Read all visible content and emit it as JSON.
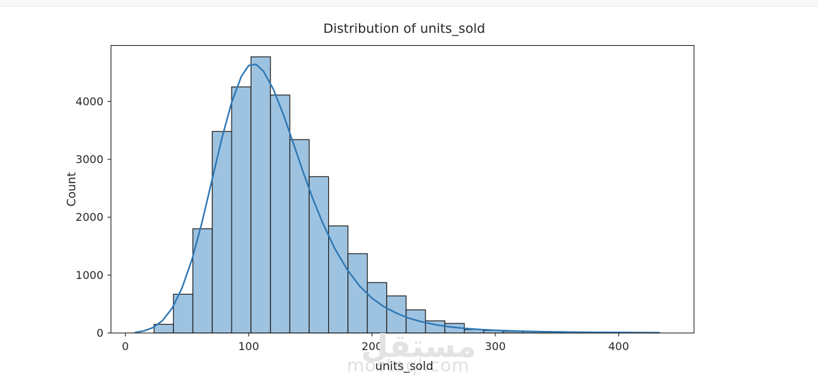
{
  "page": {
    "background": "#ffffff",
    "top_strip_color": "#f7f7f8"
  },
  "chart_data": {
    "type": "histogram-kde",
    "title": "Distribution of units_sold",
    "xlabel": "units_sold",
    "ylabel": "Count",
    "xticks": [
      0,
      100,
      200,
      300,
      400
    ],
    "yticks": [
      0,
      1000,
      2000,
      3000,
      4000
    ],
    "xlim": [
      -11.7,
      461
    ],
    "ylim": [
      0,
      4966
    ],
    "grid": false,
    "legend": "none",
    "bins": {
      "start": 23.3,
      "width": 15.72,
      "counts": [
        150,
        670,
        1800,
        3480,
        4250,
        4770,
        4110,
        3340,
        2700,
        1850,
        1370,
        870,
        640,
        400,
        210,
        165,
        60,
        42,
        30,
        24,
        18,
        14,
        11,
        9,
        7,
        5
      ]
    },
    "kde": {
      "x": [
        8,
        15,
        22,
        30,
        38,
        46,
        54,
        62,
        70,
        78,
        86,
        94,
        100,
        106,
        112,
        120,
        128,
        136,
        144,
        152,
        160,
        170,
        180,
        190,
        200,
        210,
        220,
        230,
        240,
        252,
        264,
        276,
        290,
        305,
        320,
        340,
        360,
        380,
        400,
        420,
        433
      ],
      "y": [
        10,
        35,
        90,
        210,
        430,
        780,
        1270,
        1900,
        2620,
        3340,
        3970,
        4430,
        4620,
        4640,
        4520,
        4210,
        3780,
        3290,
        2790,
        2320,
        1900,
        1450,
        1090,
        810,
        600,
        450,
        340,
        255,
        195,
        140,
        103,
        78,
        57,
        42,
        32,
        22,
        16,
        12,
        9,
        7,
        6
      ]
    },
    "colors": {
      "bar_fill": "#9ec3e1",
      "bar_edge": "#1a1a1a",
      "kde_line": "#2e77b5",
      "axis": "#1a1a1a",
      "text": "#262626"
    }
  },
  "watermark": {
    "arabic": "مستقل",
    "domain": "mostaql.com",
    "color": "#e3e3e3"
  }
}
